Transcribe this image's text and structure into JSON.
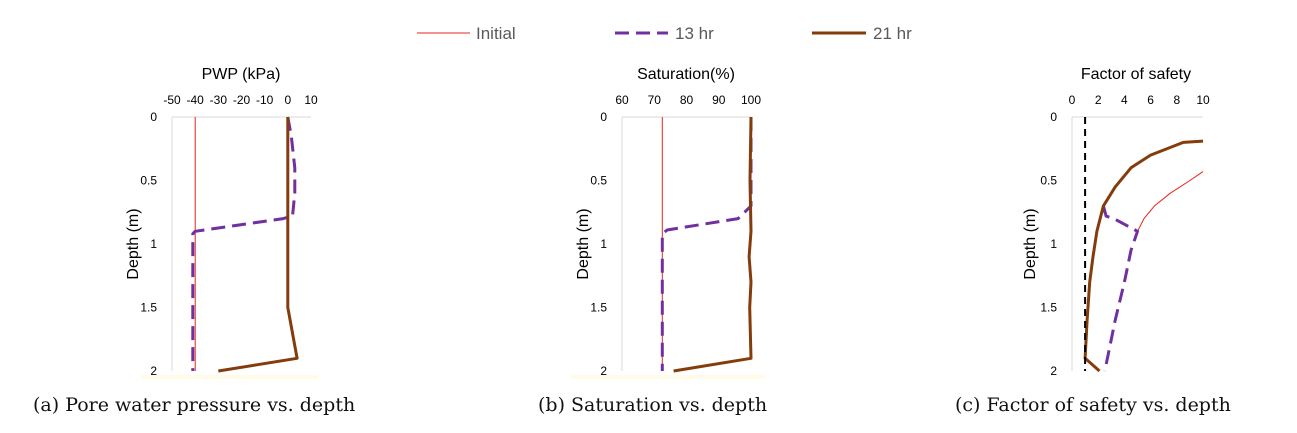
{
  "legend": {
    "items": [
      {
        "label": "Initial",
        "color": "#e8241c",
        "dash": "solid",
        "width": 1
      },
      {
        "label": "13 hr",
        "color": "#7030a0",
        "dash": "dash",
        "width": 3
      },
      {
        "label": "21 hr",
        "color": "#843c0c",
        "dash": "solid",
        "width": 3
      }
    ]
  },
  "captions": {
    "a": "(a) Pore water pressure vs. depth",
    "b": "(b) Saturation vs. depth",
    "c": "(c) Factor of safety vs. depth"
  },
  "chart_data": [
    {
      "type": "line",
      "title": "PWP (kPa)",
      "ylabel": "Depth (m)",
      "xlim": [
        -50,
        10
      ],
      "ylim": [
        0,
        2
      ],
      "y_inverted": true,
      "x_ticks": [
        "-50",
        "-40",
        "-30",
        "-20",
        "-10",
        "0",
        "10"
      ],
      "y_ticks": [
        "0",
        "0.5",
        "1",
        "1.5",
        "2"
      ],
      "series": [
        {
          "name": "Initial",
          "points": [
            [
              -40,
              0
            ],
            [
              -40,
              2
            ]
          ]
        },
        {
          "name": "13 hr",
          "points": [
            [
              0,
              0
            ],
            [
              1.5,
              0.15
            ],
            [
              3,
              0.4
            ],
            [
              3,
              0.6
            ],
            [
              2,
              0.78
            ],
            [
              -2,
              0.8
            ],
            [
              -40,
              0.9
            ],
            [
              -41,
              0.92
            ],
            [
              -41,
              2
            ]
          ]
        },
        {
          "name": "21 hr",
          "points": [
            [
              0,
              0
            ],
            [
              0,
              1.5
            ],
            [
              4,
              1.9
            ],
            [
              -30,
              2
            ]
          ]
        }
      ]
    },
    {
      "type": "line",
      "title": "Saturation(%)",
      "ylabel": "Depth (m)",
      "xlim": [
        60,
        100
      ],
      "ylim": [
        0,
        2
      ],
      "y_inverted": true,
      "x_ticks": [
        "60",
        "70",
        "80",
        "90",
        "100"
      ],
      "y_ticks": [
        "0",
        "0.5",
        "1",
        "1.5",
        "2"
      ],
      "series": [
        {
          "name": "Initial",
          "points": [
            [
              72.5,
              0
            ],
            [
              72.5,
              2
            ]
          ]
        },
        {
          "name": "13 hr",
          "points": [
            [
              100,
              0
            ],
            [
              100,
              0.7
            ],
            [
              96,
              0.8
            ],
            [
              74,
              0.89
            ],
            [
              72.5,
              0.92
            ],
            [
              72.5,
              2
            ]
          ]
        },
        {
          "name": "21 hr",
          "points": [
            [
              100,
              0
            ],
            [
              99.7,
              0.5
            ],
            [
              100,
              0.9
            ],
            [
              99.4,
              1.1
            ],
            [
              100,
              1.3
            ],
            [
              99.6,
              1.5
            ],
            [
              100,
              1.9
            ],
            [
              76,
              2
            ]
          ]
        }
      ]
    },
    {
      "type": "line",
      "title": "Factor of safety",
      "ylabel": "Depth (m)",
      "xlim": [
        0,
        10
      ],
      "ylim": [
        0,
        2
      ],
      "y_inverted": true,
      "x_ticks": [
        "0",
        "2",
        "4",
        "6",
        "8",
        "10"
      ],
      "y_ticks": [
        "0",
        "0.5",
        "1",
        "1.5",
        "2"
      ],
      "series": [
        {
          "name": "Initial",
          "points": [
            [
              10,
              0.43
            ],
            [
              9,
              0.5
            ],
            [
              7.5,
              0.6
            ],
            [
              6.3,
              0.7
            ],
            [
              5.5,
              0.8
            ],
            [
              5,
              0.9
            ]
          ]
        },
        {
          "name": "13 hr",
          "points": [
            [
              2.4,
              0.7
            ],
            [
              2.6,
              0.78
            ],
            [
              3.2,
              0.8
            ],
            [
              5,
              0.9
            ],
            [
              4.5,
              1.05
            ],
            [
              4,
              1.3
            ],
            [
              3.3,
              1.6
            ],
            [
              2.8,
              1.85
            ],
            [
              2.5,
              2
            ]
          ]
        },
        {
          "name": "21 hr",
          "points": [
            [
              10,
              0.19
            ],
            [
              8.5,
              0.2
            ],
            [
              6,
              0.3
            ],
            [
              4.5,
              0.4
            ],
            [
              3.3,
              0.55
            ],
            [
              2.4,
              0.7
            ],
            [
              1.9,
              0.9
            ],
            [
              1.6,
              1.1
            ],
            [
              1.35,
              1.3
            ],
            [
              1.15,
              1.6
            ],
            [
              1,
              1.9
            ],
            [
              2.1,
              2
            ]
          ]
        },
        {
          "name": "FS = 1",
          "points": [
            [
              1,
              0
            ],
            [
              1,
              2
            ]
          ]
        }
      ]
    }
  ]
}
